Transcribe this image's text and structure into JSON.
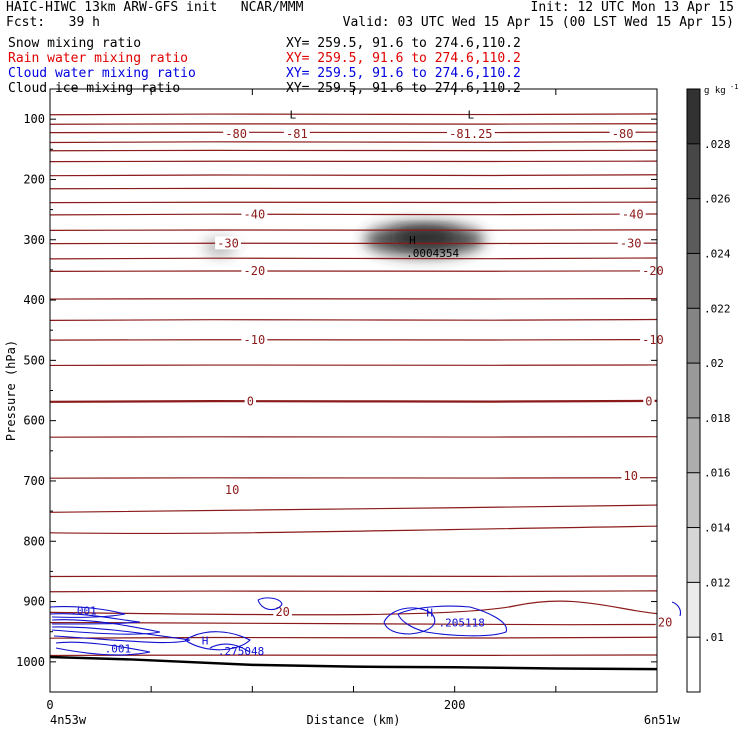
{
  "header": {
    "title": "HAIC-HIWC 13km ARW-GFS init   NCAR/MMM",
    "init": "Init: 12 UTC Mon 13 Apr 15",
    "fcst": "Fcst:   39 h",
    "valid": "Valid: 03 UTC Wed 15 Apr 15 (00 LST Wed 15 Apr 15)"
  },
  "fields": [
    {
      "name": "Snow mixing ratio",
      "xy": "XY= 259.5, 91.6 to 274.6,110.2",
      "color": "#000000"
    },
    {
      "name": "Rain water mixing ratio",
      "xy": "XY= 259.5, 91.6 to 274.6,110.2",
      "color": "#e00000"
    },
    {
      "name": "Cloud water mixing ratio",
      "xy": "XY= 259.5, 91.6 to 274.6,110.2",
      "color": "#0000e0"
    },
    {
      "name": "Cloud ice mixing ratio",
      "xy": "XY= 259.5, 91.6 to 274.6,110.2",
      "color": "#000000"
    }
  ],
  "colors": {
    "temperature": "#8b1a1a",
    "cloud_water": "#1010d0",
    "terrain": "#000000"
  },
  "chart_data": {
    "type": "cross-section",
    "xlabel": "Distance (km)",
    "ylabel": "Pressure (hPa)",
    "xlim": [
      0,
      300
    ],
    "ylim": [
      1050,
      50
    ],
    "x_ticks": [
      0,
      200
    ],
    "y_ticks": [
      100,
      200,
      300,
      400,
      500,
      600,
      700,
      800,
      900,
      1000
    ],
    "x_endpoints": {
      "left": "4n53w",
      "right": "6n51w"
    },
    "colorbar": {
      "unit": "g kg",
      "unit_exp": "-1",
      "ticks": [
        ".01",
        ".012",
        ".014",
        ".016",
        ".018",
        ".02",
        ".022",
        ".024",
        ".026",
        ".028"
      ]
    },
    "temperature_labels": [
      {
        "text": "-80",
        "x": 92,
        "p": 125
      },
      {
        "text": "-81",
        "x": 122,
        "p": 125
      },
      {
        "text": "-81.25",
        "x": 208,
        "p": 125
      },
      {
        "text": "-80",
        "x": 283,
        "p": 125
      },
      {
        "text": "-40",
        "x": 101,
        "p": 258
      },
      {
        "text": "-40",
        "x": 288,
        "p": 258
      },
      {
        "text": "-30",
        "x": 88,
        "p": 306
      },
      {
        "text": "-30",
        "x": 287,
        "p": 306
      },
      {
        "text": "-20",
        "x": 101,
        "p": 352
      },
      {
        "text": "-20",
        "x": 298,
        "p": 352
      },
      {
        "text": "-10",
        "x": 101,
        "p": 466
      },
      {
        "text": "-10",
        "x": 298,
        "p": 466
      },
      {
        "text": "0",
        "x": 99,
        "p": 568
      },
      {
        "text": "0",
        "x": 296,
        "p": 568
      },
      {
        "text": "10",
        "x": 90,
        "p": 715
      },
      {
        "text": "10",
        "x": 287,
        "p": 692
      },
      {
        "text": "20",
        "x": 115,
        "p": 917
      },
      {
        "text": "20",
        "x": 304,
        "p": 935
      }
    ],
    "temperature_extrema": [
      {
        "text": "L",
        "x": 120,
        "p": 92
      },
      {
        "text": "L",
        "x": 208,
        "p": 92
      }
    ],
    "ice_max": {
      "marker": "H",
      "value": ".0004354",
      "x": 179,
      "p": 300
    },
    "cloud_water_labels": [
      {
        "text": ".001",
        "x": 10,
        "p": 915
      },
      {
        "text": ".001",
        "x": 27,
        "p": 978
      },
      {
        "text": "H",
        "x": 75,
        "p": 965
      },
      {
        "text": ".275048",
        "x": 83,
        "p": 982
      },
      {
        "text": "H",
        "x": 186,
        "p": 918
      },
      {
        "text": ".205118",
        "x": 192,
        "p": 935
      }
    ],
    "temperature_isobar_levels": [
      92,
      108,
      122,
      138,
      152,
      170,
      193,
      215,
      238,
      258,
      284,
      306,
      331,
      352,
      398,
      433,
      466,
      508,
      568,
      627,
      695,
      747,
      786,
      858,
      883,
      918,
      935,
      960,
      989
    ],
    "terrain": [
      {
        "x": 0,
        "p": 992
      },
      {
        "x": 40,
        "p": 996
      },
      {
        "x": 100,
        "p": 1005
      },
      {
        "x": 150,
        "p": 1008
      },
      {
        "x": 200,
        "p": 1009
      },
      {
        "x": 250,
        "p": 1011
      },
      {
        "x": 300,
        "p": 1012
      }
    ]
  }
}
